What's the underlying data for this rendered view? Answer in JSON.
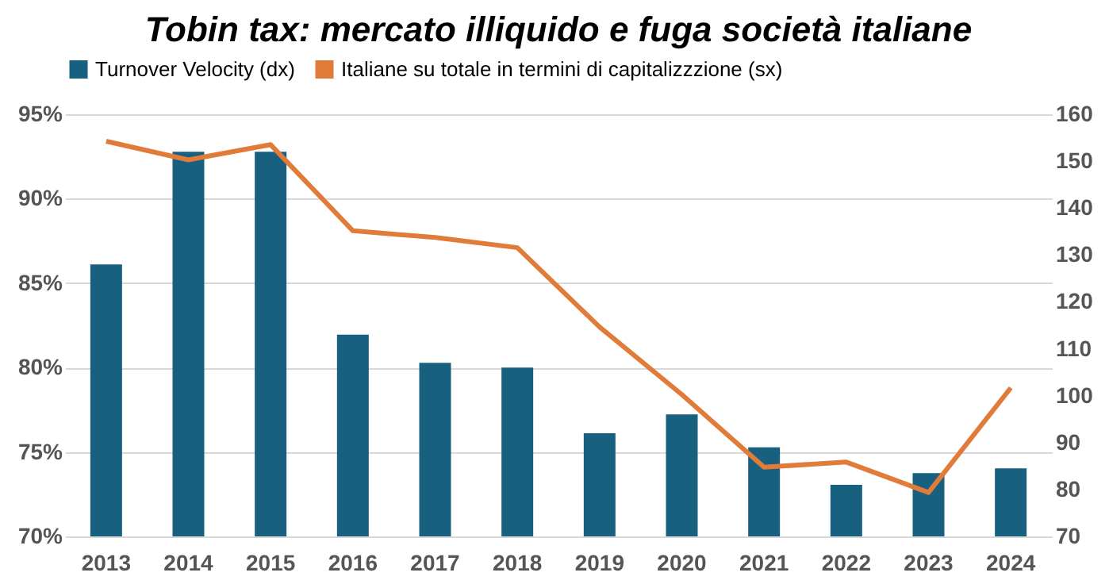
{
  "chart_data": {
    "type": "bar",
    "title": "Tobin tax: mercato illiquido e fuga società italiane",
    "categories": [
      "2013",
      "2014",
      "2015",
      "2016",
      "2017",
      "2018",
      "2019",
      "2020",
      "2021",
      "2022",
      "2023",
      "2024"
    ],
    "series": [
      {
        "name": "Turnover Velocity (dx)",
        "axis": "y2",
        "color": "#17607f",
        "values": [
          128,
          152,
          152,
          113,
          107,
          106,
          92,
          96,
          89,
          81,
          83.5,
          84.5
        ]
      },
      {
        "name": "Italiane su totale in termini di capitalizzzione (sx)",
        "type": "line",
        "axis": "y",
        "color": "#e07b39",
        "values": [
          93.4,
          92.3,
          93.2,
          88.1,
          87.7,
          87.1,
          82.4,
          78.4,
          74.1,
          74.4,
          72.6,
          78.8
        ]
      }
    ],
    "ylim": [
      70,
      95
    ],
    "yticks": [
      {
        "value": 70,
        "label": "70%"
      },
      {
        "value": 75,
        "label": "75%"
      },
      {
        "value": 80,
        "label": "80%"
      },
      {
        "value": 85,
        "label": "85%"
      },
      {
        "value": 90,
        "label": "90%"
      },
      {
        "value": 95,
        "label": "95%"
      }
    ],
    "y2lim": [
      70,
      160
    ],
    "y2ticks": [
      70,
      80,
      90,
      100,
      110,
      120,
      130,
      140,
      150,
      160
    ],
    "grid": "y",
    "legend": "top",
    "marker": "none",
    "line_style": "solid"
  }
}
